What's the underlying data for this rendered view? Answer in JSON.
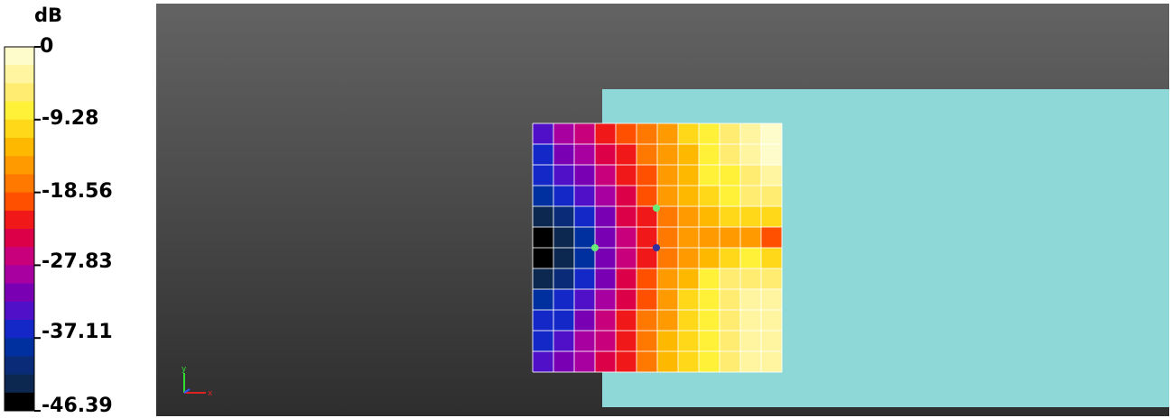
{
  "chart_data": {
    "type": "heatmap",
    "colorbar": {
      "unit": "dB",
      "ticks": [
        "0",
        "-9.28",
        "-18.56",
        "-27.83",
        "-37.11",
        "-46.39"
      ],
      "range": [
        -46.39,
        0
      ],
      "levels": 20,
      "colors": [
        "#fffccc",
        "#fff5a0",
        "#ffec70",
        "#fff038",
        "#ffd81a",
        "#ffb800",
        "#ff9a00",
        "#ff7800",
        "#ff5000",
        "#f01818",
        "#dc0048",
        "#c8007c",
        "#a800a0",
        "#7a00b4",
        "#5010c8",
        "#1428c8",
        "#0030a0",
        "#0a2c78",
        "#0c2850",
        "#000000"
      ]
    },
    "rows": 12,
    "cols": 12,
    "z": [
      [
        -33,
        -30,
        -27,
        -23,
        -20,
        -17,
        -14,
        -11,
        -8,
        -5,
        -3,
        -1
      ],
      [
        -35,
        -32,
        -29,
        -25,
        -22,
        -18,
        -15,
        -12,
        -9,
        -6,
        -4,
        -2
      ],
      [
        -37,
        -34,
        -31,
        -27,
        -23,
        -19,
        -16,
        -12,
        -9,
        -7,
        -5,
        -3
      ],
      [
        -39,
        -37,
        -33,
        -29,
        -24,
        -20,
        -16,
        -13,
        -10,
        -8,
        -6,
        -5
      ],
      [
        -42,
        -40,
        -36,
        -31,
        -25,
        -21,
        -17,
        -14,
        -12,
        -11,
        -10,
        -10
      ],
      [
        -46,
        -43,
        -38,
        -32,
        -26,
        -22,
        -18,
        -16,
        -15,
        -15,
        -16,
        -20
      ],
      [
        -46,
        -43,
        -38,
        -32,
        -26,
        -21,
        -17,
        -14,
        -12,
        -10,
        -9,
        -10
      ],
      [
        -42,
        -40,
        -36,
        -31,
        -25,
        -20,
        -16,
        -12,
        -9,
        -6,
        -5,
        -5
      ],
      [
        -39,
        -37,
        -33,
        -29,
        -24,
        -19,
        -15,
        -11,
        -8,
        -5,
        -3,
        -3
      ],
      [
        -37,
        -35,
        -31,
        -27,
        -23,
        -18,
        -14,
        -10,
        -7,
        -5,
        -3,
        -3
      ],
      [
        -35,
        -33,
        -30,
        -26,
        -22,
        -17,
        -13,
        -10,
        -7,
        -5,
        -3,
        -3
      ],
      [
        -34,
        -32,
        -29,
        -25,
        -21,
        -17,
        -13,
        -10,
        -7,
        -5,
        -4,
        -4
      ]
    ],
    "probe_points": [
      {
        "color": "#66ee77"
      },
      {
        "color": "#66ee77"
      },
      {
        "color": "#3030a0"
      }
    ],
    "model_color": "#8fd8d8",
    "background": [
      "#636363",
      "#2e2e2e"
    ]
  },
  "axes_triad": {
    "x": "x",
    "y": "y"
  }
}
